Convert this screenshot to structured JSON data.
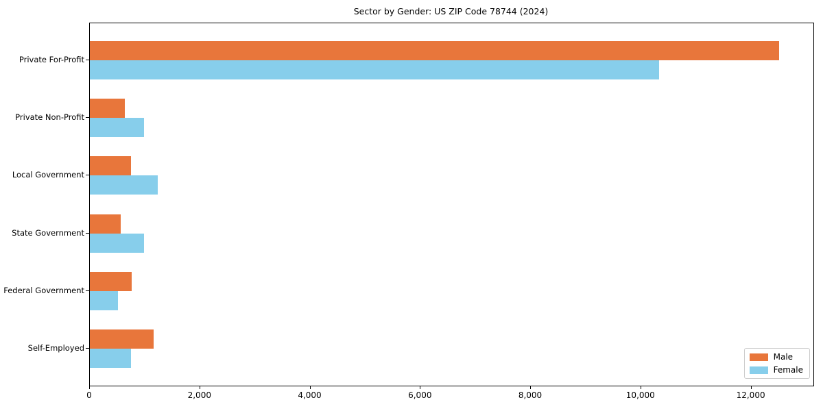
{
  "chart_data": {
    "type": "bar",
    "orientation": "horizontal",
    "title": "Sector by Gender: US ZIP Code 78744 (2024)",
    "categories": [
      "Private For-Profit",
      "Private Non-Profit",
      "Local Government",
      "State Government",
      "Federal Government",
      "Self-Employed"
    ],
    "series": [
      {
        "name": "Male",
        "color": "#e8763b",
        "values": [
          12500,
          640,
          740,
          560,
          760,
          1160
        ]
      },
      {
        "name": "Female",
        "color": "#87ceeb",
        "values": [
          10330,
          980,
          1230,
          980,
          510,
          750
        ]
      }
    ],
    "xlabel": "",
    "ylabel": "",
    "xlim": [
      0,
      13125
    ],
    "x_ticks": [
      0,
      2000,
      4000,
      6000,
      8000,
      10000,
      12000
    ],
    "x_tick_labels": [
      "0",
      "2,000",
      "4,000",
      "6,000",
      "8,000",
      "10,000",
      "12,000"
    ],
    "grid": false,
    "legend_position": "lower right",
    "axis_color": "#000000",
    "legend_border_color": "#cccccc"
  }
}
